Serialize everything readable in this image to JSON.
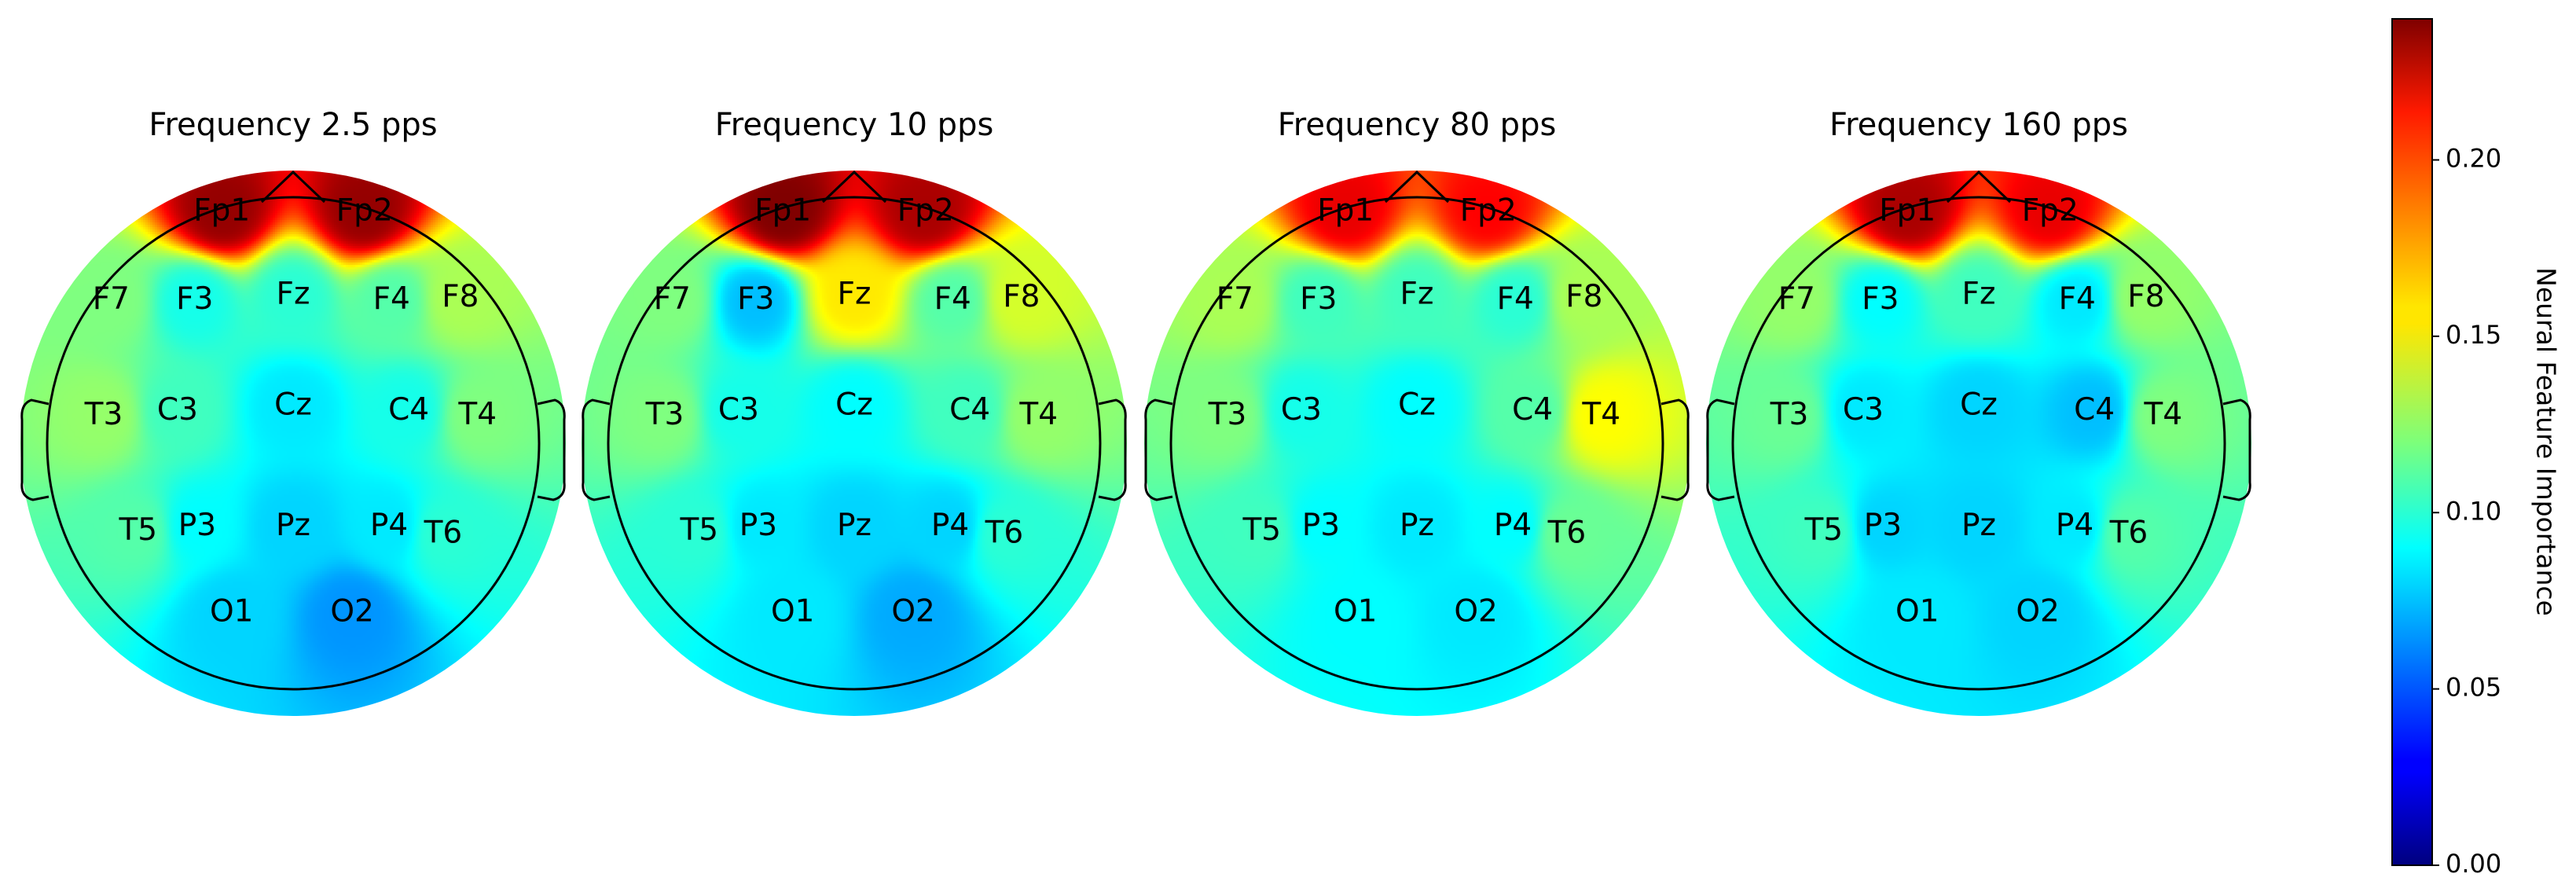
{
  "chart_data": {
    "type": "heatmap",
    "plot_kind": "EEG scalp topographic maps",
    "colormap": "jet",
    "electrodes": [
      "Fp1",
      "Fp2",
      "F7",
      "F3",
      "Fz",
      "F4",
      "F8",
      "T3",
      "C3",
      "Cz",
      "C4",
      "T4",
      "T5",
      "P3",
      "Pz",
      "P4",
      "T6",
      "O1",
      "O2"
    ],
    "maps": [
      {
        "title": "Frequency 2.5 pps",
        "values": [
          0.235,
          0.235,
          0.12,
          0.095,
          0.1,
          0.11,
          0.13,
          0.125,
          0.105,
          0.085,
          0.095,
          0.12,
          0.11,
          0.09,
          0.08,
          0.085,
          0.1,
          0.08,
          0.065
        ]
      },
      {
        "title": "Frequency 10 pps",
        "values": [
          0.24,
          0.23,
          0.12,
          0.075,
          0.155,
          0.11,
          0.14,
          0.12,
          0.095,
          0.09,
          0.105,
          0.125,
          0.1,
          0.085,
          0.08,
          0.08,
          0.1,
          0.085,
          0.07
        ]
      },
      {
        "title": "Frequency 80 pps",
        "values": [
          0.215,
          0.21,
          0.13,
          0.105,
          0.105,
          0.1,
          0.13,
          0.12,
          0.095,
          0.09,
          0.11,
          0.15,
          0.105,
          0.09,
          0.085,
          0.09,
          0.115,
          0.09,
          0.085
        ]
      },
      {
        "title": "Frequency 160 pps",
        "values": [
          0.23,
          0.215,
          0.125,
          0.09,
          0.105,
          0.085,
          0.125,
          0.115,
          0.085,
          0.08,
          0.075,
          0.12,
          0.105,
          0.08,
          0.08,
          0.085,
          0.11,
          0.085,
          0.08
        ]
      }
    ],
    "colorbar": {
      "label": "Neural Feature Importance",
      "range": [
        0.0,
        0.24
      ],
      "ticks": [
        "0.00",
        "0.05",
        "0.10",
        "0.15",
        "0.20"
      ]
    }
  }
}
